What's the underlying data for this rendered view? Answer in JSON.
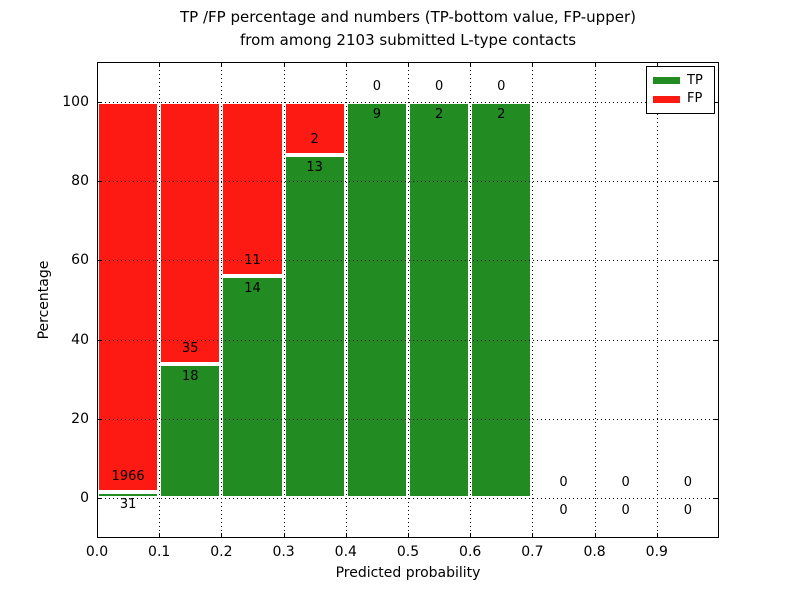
{
  "chart_data": {
    "type": "bar",
    "stacked": true,
    "title_line1": "TP /FP percentage and numbers (TP-bottom value, FP-upper)",
    "title_line2": "from among 2103 submitted L-type contacts",
    "xlabel": "Predicted probability",
    "ylabel": "Percentage",
    "xlim": [
      0.0,
      1.0
    ],
    "ylim": [
      -10,
      110
    ],
    "grid": "dotted",
    "legend_position": "upper right",
    "xticks": [
      {
        "value": 0.0,
        "label": "0.0"
      },
      {
        "value": 0.1,
        "label": "0.1"
      },
      {
        "value": 0.2,
        "label": "0.2"
      },
      {
        "value": 0.3,
        "label": "0.3"
      },
      {
        "value": 0.4,
        "label": "0.4"
      },
      {
        "value": 0.5,
        "label": "0.5"
      },
      {
        "value": 0.6,
        "label": "0.6"
      },
      {
        "value": 0.7,
        "label": "0.7"
      },
      {
        "value": 0.8,
        "label": "0.8"
      },
      {
        "value": 0.9,
        "label": "0.9"
      }
    ],
    "yticks": [
      {
        "value": 0,
        "label": "0"
      },
      {
        "value": 20,
        "label": "20"
      },
      {
        "value": 40,
        "label": "40"
      },
      {
        "value": 60,
        "label": "60"
      },
      {
        "value": 80,
        "label": "80"
      },
      {
        "value": 100,
        "label": "100"
      }
    ],
    "series": [
      {
        "name": "TP",
        "color": "#228b22"
      },
      {
        "name": "FP",
        "color": "#fc1a13"
      }
    ],
    "bins": [
      {
        "x0": 0.0,
        "x1": 0.1,
        "tp": 31,
        "fp": 1966
      },
      {
        "x0": 0.1,
        "x1": 0.2,
        "tp": 18,
        "fp": 35
      },
      {
        "x0": 0.2,
        "x1": 0.3,
        "tp": 14,
        "fp": 11
      },
      {
        "x0": 0.3,
        "x1": 0.4,
        "tp": 13,
        "fp": 2
      },
      {
        "x0": 0.4,
        "x1": 0.5,
        "tp": 9,
        "fp": 0
      },
      {
        "x0": 0.5,
        "x1": 0.6,
        "tp": 2,
        "fp": 0
      },
      {
        "x0": 0.6,
        "x1": 0.7,
        "tp": 2,
        "fp": 0
      },
      {
        "x0": 0.7,
        "x1": 0.8,
        "tp": 0,
        "fp": 0
      },
      {
        "x0": 0.8,
        "x1": 0.9,
        "tp": 0,
        "fp": 0
      },
      {
        "x0": 0.9,
        "x1": 1.0,
        "tp": 0,
        "fp": 0
      }
    ]
  }
}
